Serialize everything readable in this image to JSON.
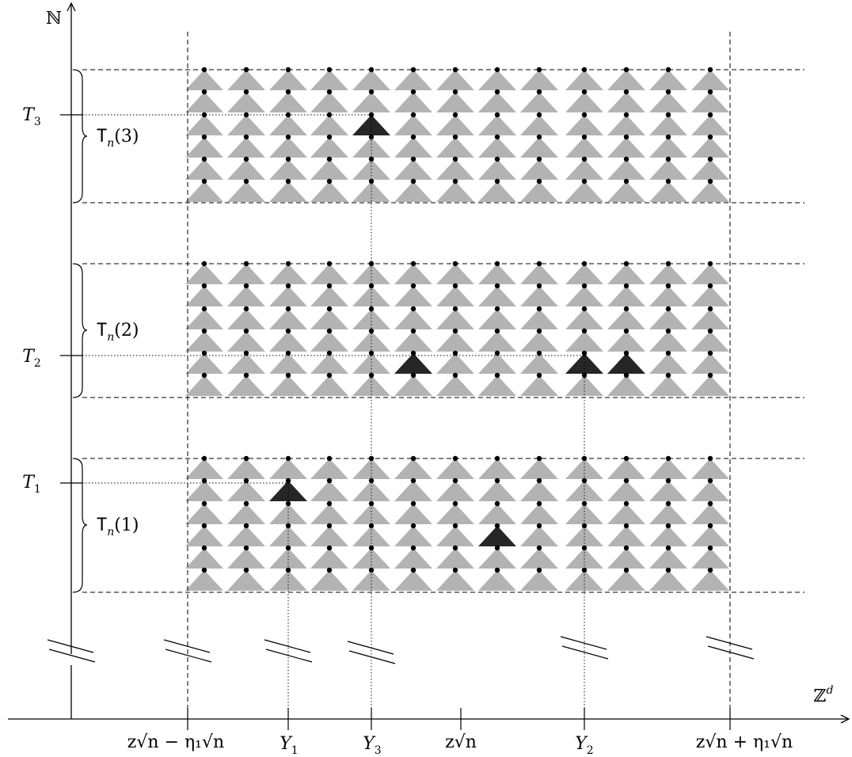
{
  "axes": {
    "vertical_label": "ℕ",
    "horizontal_label": "ℤ",
    "horizontal_label_sup": "d"
  },
  "y_ticks": [
    {
      "name": "T",
      "sub": "3"
    },
    {
      "name": "T",
      "sub": "2"
    },
    {
      "name": "T",
      "sub": "1"
    }
  ],
  "blocks": [
    {
      "label_name": "T",
      "label_sub": "n",
      "label_arg": "(3)"
    },
    {
      "label_name": "T",
      "label_sub": "n",
      "label_arg": "(2)"
    },
    {
      "label_name": "T",
      "label_sub": "n",
      "label_arg": "(1)"
    }
  ],
  "x_ticks": [
    {
      "id": "left-bound",
      "text": "z√n − η₁√n"
    },
    {
      "id": "Y1",
      "name": "Y",
      "sub": "1"
    },
    {
      "id": "Y3",
      "name": "Y",
      "sub": "3"
    },
    {
      "id": "center",
      "text": "z√n"
    },
    {
      "id": "Y2",
      "name": "Y",
      "sub": "2"
    },
    {
      "id": "right-bound",
      "text": "z√n + η₁√n"
    }
  ],
  "colors": {
    "axis": "#000000",
    "triangle_gray": "#b3b3b3",
    "triangle_highlight": "#262626",
    "dot": "#000000"
  },
  "highlighted_triangles": [
    {
      "block": 3,
      "column": 5,
      "row": 3
    },
    {
      "block": 2,
      "column": 6,
      "row": 5
    },
    {
      "block": 2,
      "column": 10,
      "row": 5
    },
    {
      "block": 2,
      "column": 11,
      "row": 5
    },
    {
      "block": 1,
      "column": 3,
      "row": 2
    },
    {
      "block": 1,
      "column": 8,
      "row": 4
    }
  ]
}
